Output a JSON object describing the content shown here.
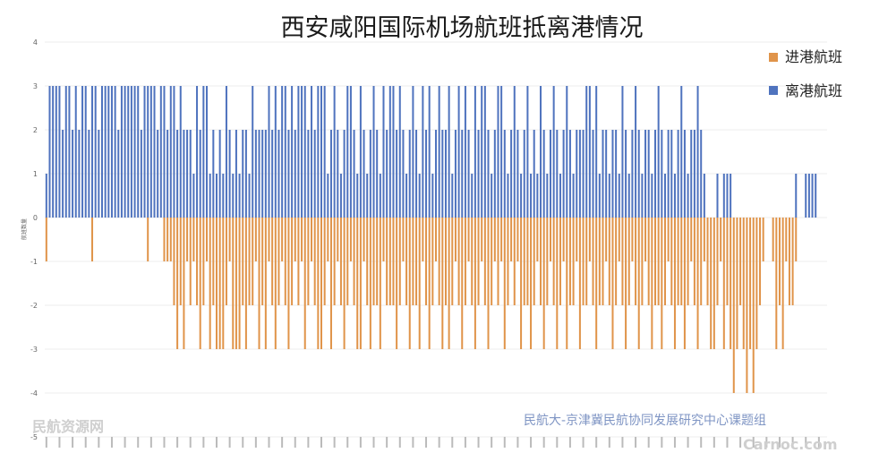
{
  "chart_data": {
    "type": "bar",
    "title": "西安咸阳国际机场航班抵离港情况",
    "ylabel": "航班数量",
    "ylim": [
      -5,
      4
    ],
    "yticks": [
      4,
      3,
      2,
      1,
      0,
      -1,
      -2,
      -3,
      -4,
      -5
    ],
    "grid": true,
    "legend_position": "top-right",
    "series": [
      {
        "name": "进港航班",
        "color": "#e0944a",
        "values": [
          -1,
          0,
          0,
          0,
          0,
          0,
          0,
          0,
          0,
          0,
          0,
          0,
          0,
          0,
          -1,
          0,
          0,
          0,
          0,
          0,
          0,
          0,
          0,
          0,
          0,
          0,
          0,
          0,
          0,
          0,
          0,
          -1,
          0,
          0,
          0,
          0,
          -1,
          -1,
          -1,
          -2,
          -3,
          -2,
          -3,
          -1,
          -2,
          -1,
          -2,
          -3,
          -2,
          -1,
          -3,
          -2,
          -3,
          -3,
          -3,
          -2,
          -1,
          -3,
          -3,
          -3,
          -2,
          -3,
          -2,
          -2,
          -1,
          -3,
          -2,
          -3,
          -1,
          -2,
          -3,
          -2,
          -1,
          -2,
          -3,
          -2,
          -1,
          -2,
          -1,
          -3,
          -2,
          -1,
          -2,
          -3,
          -3,
          -2,
          -1,
          -3,
          -2,
          -1,
          -2,
          -3,
          -2,
          -1,
          -2,
          -3,
          -3,
          -1,
          -2,
          -3,
          -2,
          -2,
          -3,
          -1,
          -2,
          -2,
          -2,
          -3,
          -2,
          -1,
          -2,
          -3,
          -2,
          -2,
          -3,
          -1,
          -2,
          -3,
          -2,
          -1,
          -2,
          -3,
          -2,
          -3,
          -2,
          -1,
          -2,
          -3,
          -2,
          -1,
          -2,
          -3,
          -2,
          -1,
          -2,
          -3,
          -2,
          -1,
          -2,
          -1,
          -3,
          -2,
          -1,
          -2,
          -1,
          -3,
          -2,
          -2,
          -3,
          -2,
          -1,
          -2,
          -3,
          -2,
          -1,
          -2,
          -3,
          -2,
          -1,
          -3,
          -2,
          -2,
          -1,
          -3,
          -2,
          -2,
          -1,
          -2,
          -3,
          -2,
          -2,
          -1,
          -2,
          -3,
          -2,
          -1,
          -2,
          -3,
          -2,
          -1,
          -2,
          -3,
          -2,
          -1,
          -2,
          -3,
          -2,
          -2,
          -3,
          -2,
          -1,
          -2,
          -3,
          -2,
          -2,
          -3,
          -2,
          -1,
          -2,
          -3,
          -2,
          -1,
          -2,
          -3,
          -3,
          -2,
          -1,
          -3,
          -2,
          -3,
          -4,
          -3,
          -2,
          -3,
          -4,
          -3,
          -4,
          -3,
          -2,
          -1,
          0,
          0,
          -1,
          -3,
          -2,
          -3,
          -1,
          -2,
          -2,
          -1,
          0,
          0,
          0,
          0,
          0,
          0,
          0,
          0,
          0
        ]
      },
      {
        "name": "离港航班",
        "color": "#4f73be",
        "values": [
          1,
          3,
          3,
          3,
          3,
          2,
          3,
          3,
          2,
          3,
          2,
          3,
          3,
          2,
          3,
          3,
          2,
          3,
          3,
          3,
          3,
          3,
          2,
          3,
          3,
          3,
          3,
          3,
          3,
          2,
          3,
          3,
          3,
          3,
          2,
          3,
          3,
          2,
          3,
          3,
          2,
          3,
          2,
          2,
          2,
          1,
          3,
          2,
          3,
          3,
          1,
          2,
          1,
          2,
          1,
          3,
          2,
          1,
          2,
          1,
          2,
          2,
          1,
          3,
          2,
          2,
          2,
          2,
          3,
          2,
          3,
          2,
          3,
          3,
          2,
          3,
          2,
          3,
          3,
          3,
          2,
          3,
          2,
          3,
          3,
          3,
          1,
          2,
          3,
          2,
          1,
          2,
          3,
          3,
          2,
          1,
          3,
          2,
          1,
          2,
          3,
          2,
          1,
          3,
          2,
          3,
          3,
          2,
          3,
          2,
          1,
          2,
          3,
          2,
          1,
          3,
          2,
          3,
          1,
          2,
          3,
          2,
          2,
          3,
          1,
          2,
          3,
          2,
          3,
          2,
          1,
          3,
          2,
          3,
          3,
          2,
          1,
          2,
          3,
          3,
          2,
          1,
          2,
          3,
          2,
          1,
          2,
          3,
          1,
          2,
          1,
          3,
          2,
          1,
          2,
          3,
          2,
          1,
          2,
          3,
          2,
          1,
          2,
          2,
          2,
          3,
          3,
          2,
          3,
          1,
          2,
          2,
          1,
          2,
          2,
          1,
          3,
          2,
          1,
          2,
          3,
          2,
          1,
          2,
          2,
          1,
          2,
          3,
          2,
          1,
          2,
          2,
          1,
          2,
          3,
          2,
          1,
          2,
          2,
          3,
          2,
          1,
          0,
          0,
          0,
          1,
          0,
          1,
          1,
          1,
          0,
          0,
          0,
          0,
          0,
          0,
          0,
          0,
          0,
          0,
          0,
          0,
          0,
          0,
          0,
          0,
          0,
          0,
          0,
          1,
          0,
          0,
          1,
          1,
          1,
          1
        ]
      }
    ]
  },
  "credit": "民航大-京津冀民航协同发展研究中心课题组",
  "watermark_left": "民航资源网",
  "watermark_right": "Carnoc.com"
}
